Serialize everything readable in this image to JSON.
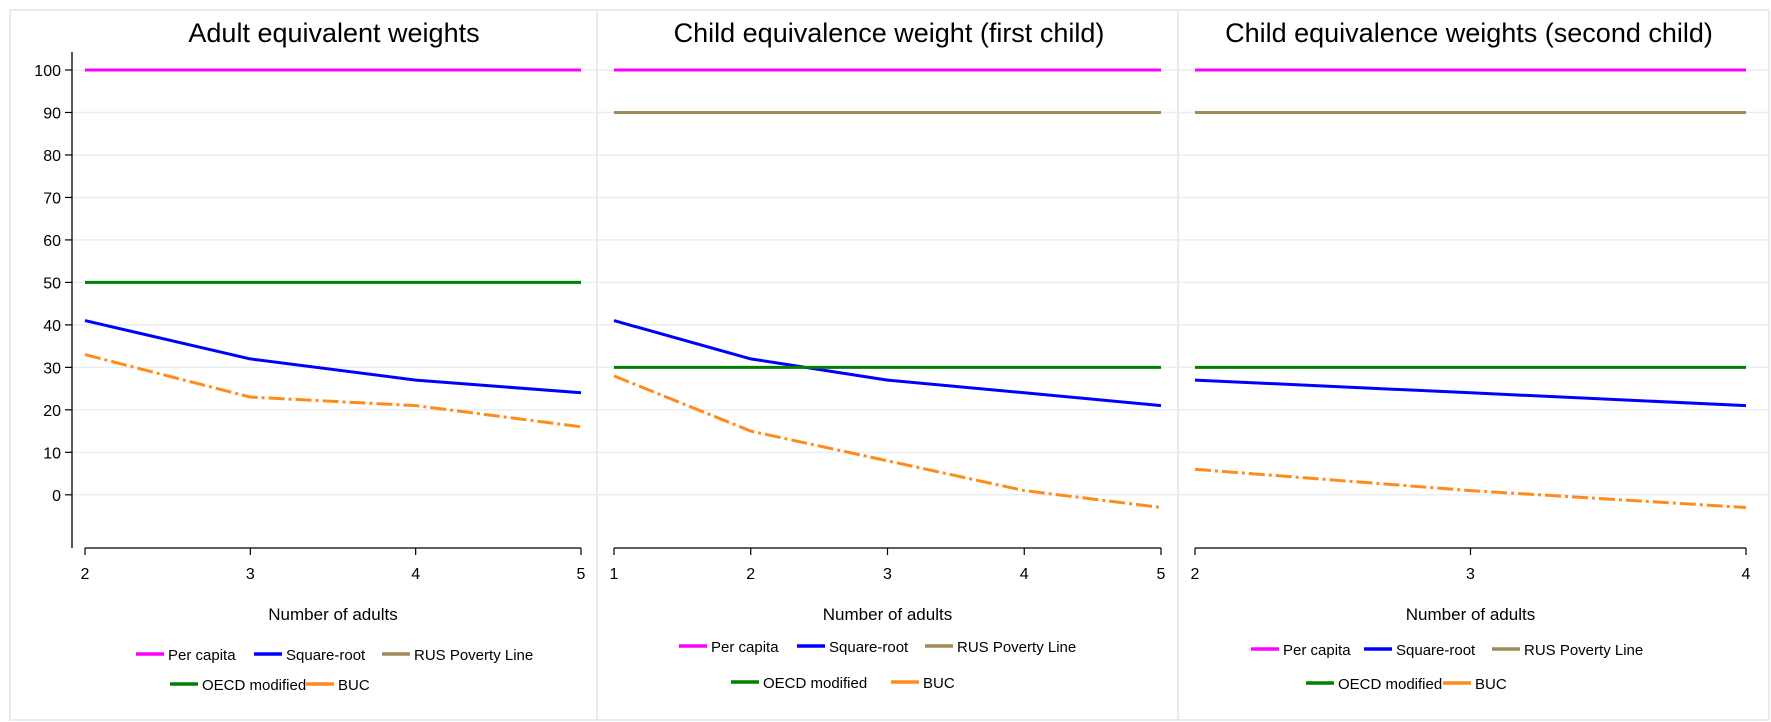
{
  "y_ticks": [
    0,
    10,
    20,
    30,
    40,
    50,
    60,
    70,
    80,
    90,
    100
  ],
  "colors": {
    "Per capita": "#ff00ff",
    "Square-root": "#0000ff",
    "RUS Poverty Line": "#a08c5a",
    "OECD modified": "#008000",
    "BUC": "#ff8c1a",
    "gridline": "#e8eef3",
    "border": "#dde5ec"
  },
  "chart_data": [
    {
      "type": "line",
      "title": "Adult equivalent weights",
      "xlabel": "Number of adults",
      "ylabel": "",
      "x": [
        2,
        3,
        4,
        5
      ],
      "xlim": [
        2,
        5
      ],
      "ylim": [
        -13,
        104
      ],
      "grid": true,
      "legend_position": "bottom",
      "series": [
        {
          "name": "Per capita",
          "values": [
            100,
            100,
            100,
            100
          ]
        },
        {
          "name": "Square-root",
          "values": [
            41,
            32,
            27,
            24
          ]
        },
        {
          "name": "RUS Poverty Line",
          "values": [
            null,
            null,
            null,
            null
          ]
        },
        {
          "name": "OECD modified",
          "values": [
            50,
            50,
            50,
            50
          ]
        },
        {
          "name": "BUC",
          "values": [
            33,
            23,
            21,
            16
          ]
        }
      ]
    },
    {
      "type": "line",
      "title": "Child equivalence weight (first child)",
      "xlabel": "Number of adults",
      "ylabel": "",
      "x": [
        1,
        2,
        3,
        4,
        5
      ],
      "xlim": [
        1,
        5
      ],
      "ylim": [
        -13,
        104
      ],
      "grid": true,
      "legend_position": "bottom",
      "series": [
        {
          "name": "Per capita",
          "values": [
            100,
            100,
            100,
            100,
            100
          ]
        },
        {
          "name": "Square-root",
          "values": [
            41,
            32,
            27,
            24,
            21
          ]
        },
        {
          "name": "RUS Poverty Line",
          "values": [
            90,
            90,
            90,
            90,
            90
          ]
        },
        {
          "name": "OECD modified",
          "values": [
            30,
            30,
            30,
            30,
            30
          ]
        },
        {
          "name": "BUC",
          "values": [
            28,
            15,
            8,
            1,
            -3
          ]
        }
      ]
    },
    {
      "type": "line",
      "title": "Child equivalence weights (second child)",
      "xlabel": "Number of adults",
      "ylabel": "",
      "x": [
        2,
        3,
        4
      ],
      "xlim": [
        2,
        4
      ],
      "ylim": [
        -13,
        104
      ],
      "grid": true,
      "legend_position": "bottom",
      "series": [
        {
          "name": "Per capita",
          "values": [
            100,
            100,
            100
          ]
        },
        {
          "name": "Square-root",
          "values": [
            27,
            24,
            21
          ]
        },
        {
          "name": "RUS Poverty Line",
          "values": [
            90,
            90,
            90
          ]
        },
        {
          "name": "OECD modified",
          "values": [
            30,
            30,
            30
          ]
        },
        {
          "name": "BUC",
          "values": [
            6,
            1,
            -3
          ]
        }
      ]
    }
  ]
}
